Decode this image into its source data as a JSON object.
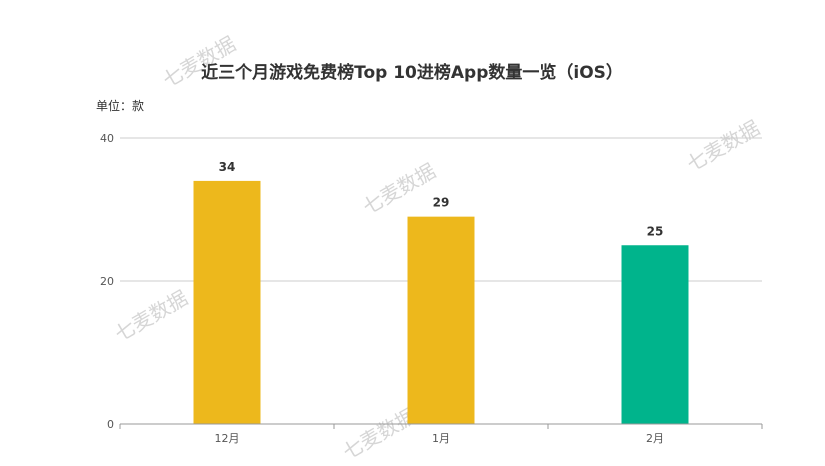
{
  "chart_data": {
    "type": "bar",
    "title": "近三个月游戏免费榜Top 10进榜App数量一览（iOS）",
    "unit_label": "单位：款",
    "categories": [
      "12月",
      "1月",
      "2月"
    ],
    "values": [
      34,
      29,
      25
    ],
    "bar_colors": [
      "#EDB81C",
      "#EDB81C",
      "#00B48C"
    ],
    "ylim": [
      0,
      40
    ],
    "yticks": [
      0,
      20,
      40
    ],
    "grid": true,
    "legend": "none"
  },
  "watermark": "七麦数据",
  "colors": {
    "grid": "#cccccc",
    "axis": "#999999",
    "watermark": "#d6d6d6"
  }
}
